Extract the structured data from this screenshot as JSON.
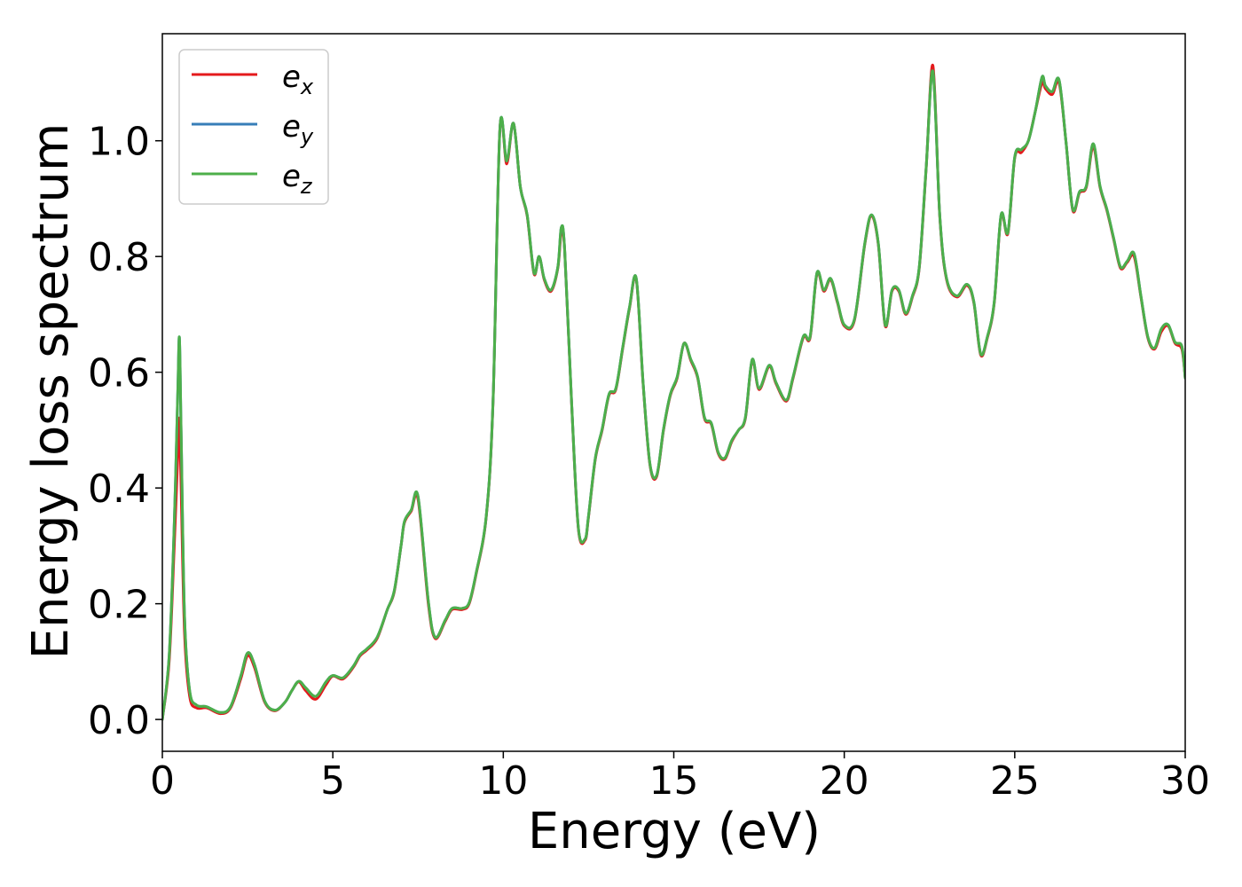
{
  "chart_data": {
    "type": "line",
    "xlabel": "Energy (eV)",
    "ylabel": "Energy loss spectrum",
    "xlim": [
      0,
      30
    ],
    "ylim": [
      -0.055,
      1.185
    ],
    "xticks": [
      0,
      5,
      10,
      15,
      20,
      25,
      30
    ],
    "xtick_labels": [
      "0",
      "5",
      "10",
      "15",
      "20",
      "25",
      "30"
    ],
    "yticks": [
      0.0,
      0.2,
      0.4,
      0.6,
      0.8,
      1.0
    ],
    "ytick_labels": [
      "0.0",
      "0.2",
      "0.4",
      "0.6",
      "0.8",
      "1.0"
    ],
    "grid": false,
    "legend_placement": "top-left",
    "x": [
      0,
      0.2,
      0.35,
      0.45,
      0.5,
      0.55,
      0.65,
      0.8,
      1.0,
      1.3,
      1.7,
      2.0,
      2.3,
      2.5,
      2.7,
      3.0,
      3.3,
      3.6,
      3.8,
      4.0,
      4.2,
      4.5,
      4.8,
      5.0,
      5.3,
      5.6,
      5.8,
      6.0,
      6.3,
      6.6,
      6.8,
      7.0,
      7.1,
      7.3,
      7.5,
      7.8,
      8.0,
      8.3,
      8.5,
      8.8,
      9.0,
      9.2,
      9.5,
      9.7,
      9.9,
      10.1,
      10.3,
      10.5,
      10.7,
      10.9,
      11.05,
      11.2,
      11.4,
      11.6,
      11.7,
      11.8,
      12.0,
      12.2,
      12.4,
      12.5,
      12.7,
      12.9,
      13.1,
      13.3,
      13.5,
      13.7,
      13.9,
      14.1,
      14.3,
      14.5,
      14.7,
      14.9,
      15.1,
      15.3,
      15.5,
      15.7,
      15.9,
      16.1,
      16.3,
      16.5,
      16.7,
      16.9,
      17.1,
      17.3,
      17.5,
      17.8,
      18.0,
      18.3,
      18.5,
      18.8,
      19.0,
      19.2,
      19.4,
      19.6,
      19.8,
      20.0,
      20.3,
      20.6,
      20.8,
      21.0,
      21.2,
      21.4,
      21.6,
      21.8,
      22.0,
      22.2,
      22.4,
      22.6,
      22.8,
      23.0,
      23.3,
      23.6,
      23.8,
      24.0,
      24.2,
      24.4,
      24.6,
      24.8,
      25.0,
      25.2,
      25.4,
      25.6,
      25.8,
      25.9,
      26.1,
      26.3,
      26.5,
      26.7,
      26.9,
      27.1,
      27.3,
      27.5,
      27.7,
      27.9,
      28.1,
      28.3,
      28.5,
      28.7,
      28.9,
      29.1,
      29.3,
      29.5,
      29.7,
      29.9,
      30.0
    ],
    "series": [
      {
        "name": "e_x",
        "label_base": "e",
        "label_sub": "x",
        "color": "#e41a1c",
        "values": [
          0.0,
          0.1,
          0.3,
          0.45,
          0.52,
          0.4,
          0.15,
          0.04,
          0.02,
          0.02,
          0.01,
          0.02,
          0.07,
          0.11,
          0.09,
          0.03,
          0.015,
          0.03,
          0.05,
          0.065,
          0.05,
          0.035,
          0.06,
          0.075,
          0.07,
          0.09,
          0.11,
          0.12,
          0.14,
          0.19,
          0.22,
          0.3,
          0.34,
          0.36,
          0.38,
          0.2,
          0.14,
          0.17,
          0.19,
          0.19,
          0.2,
          0.25,
          0.35,
          0.55,
          1.02,
          0.96,
          1.03,
          0.92,
          0.87,
          0.77,
          0.8,
          0.76,
          0.74,
          0.78,
          0.84,
          0.81,
          0.55,
          0.33,
          0.31,
          0.35,
          0.45,
          0.5,
          0.56,
          0.57,
          0.64,
          0.71,
          0.76,
          0.58,
          0.44,
          0.42,
          0.5,
          0.56,
          0.59,
          0.65,
          0.62,
          0.59,
          0.52,
          0.51,
          0.46,
          0.45,
          0.48,
          0.5,
          0.52,
          0.62,
          0.57,
          0.61,
          0.58,
          0.55,
          0.59,
          0.66,
          0.66,
          0.77,
          0.74,
          0.76,
          0.72,
          0.68,
          0.69,
          0.82,
          0.87,
          0.82,
          0.68,
          0.74,
          0.74,
          0.7,
          0.73,
          0.78,
          0.95,
          1.13,
          0.87,
          0.76,
          0.73,
          0.75,
          0.72,
          0.63,
          0.66,
          0.72,
          0.87,
          0.84,
          0.97,
          0.98,
          1.0,
          1.05,
          1.1,
          1.09,
          1.08,
          1.1,
          1.0,
          0.88,
          0.91,
          0.92,
          0.99,
          0.92,
          0.88,
          0.83,
          0.78,
          0.79,
          0.8,
          0.73,
          0.66,
          0.64,
          0.67,
          0.68,
          0.65,
          0.64,
          0.59
        ]
      },
      {
        "name": "e_y",
        "label_base": "e",
        "label_sub": "y",
        "color": "#377eb8",
        "values": [
          0.0,
          0.11,
          0.34,
          0.56,
          0.66,
          0.5,
          0.18,
          0.05,
          0.025,
          0.022,
          0.012,
          0.022,
          0.075,
          0.115,
          0.095,
          0.032,
          0.016,
          0.03,
          0.05,
          0.066,
          0.055,
          0.04,
          0.065,
          0.076,
          0.072,
          0.092,
          0.112,
          0.122,
          0.142,
          0.19,
          0.222,
          0.3,
          0.342,
          0.362,
          0.385,
          0.205,
          0.142,
          0.172,
          0.192,
          0.192,
          0.202,
          0.252,
          0.352,
          0.552,
          1.02,
          0.965,
          1.03,
          0.92,
          0.872,
          0.772,
          0.8,
          0.762,
          0.742,
          0.782,
          0.85,
          0.812,
          0.552,
          0.332,
          0.312,
          0.352,
          0.452,
          0.502,
          0.562,
          0.572,
          0.642,
          0.712,
          0.762,
          0.582,
          0.442,
          0.422,
          0.502,
          0.562,
          0.592,
          0.65,
          0.622,
          0.592,
          0.522,
          0.512,
          0.462,
          0.452,
          0.482,
          0.5,
          0.522,
          0.622,
          0.572,
          0.612,
          0.582,
          0.552,
          0.592,
          0.662,
          0.662,
          0.772,
          0.742,
          0.762,
          0.722,
          0.682,
          0.692,
          0.822,
          0.872,
          0.822,
          0.682,
          0.742,
          0.742,
          0.702,
          0.732,
          0.782,
          0.952,
          1.12,
          0.872,
          0.762,
          0.732,
          0.752,
          0.722,
          0.632,
          0.662,
          0.722,
          0.872,
          0.842,
          0.972,
          0.985,
          1.0,
          1.05,
          1.11,
          1.095,
          1.085,
          1.105,
          1.0,
          0.882,
          0.912,
          0.922,
          0.995,
          0.922,
          0.882,
          0.832,
          0.782,
          0.792,
          0.805,
          0.732,
          0.662,
          0.642,
          0.675,
          0.682,
          0.652,
          0.645,
          0.59
        ]
      },
      {
        "name": "e_z",
        "label_base": "e",
        "label_sub": "z",
        "color": "#4daf4a",
        "values": [
          0.0,
          0.11,
          0.34,
          0.56,
          0.66,
          0.5,
          0.18,
          0.05,
          0.025,
          0.022,
          0.012,
          0.022,
          0.075,
          0.115,
          0.095,
          0.032,
          0.016,
          0.03,
          0.05,
          0.066,
          0.055,
          0.04,
          0.065,
          0.076,
          0.072,
          0.092,
          0.112,
          0.122,
          0.142,
          0.19,
          0.222,
          0.3,
          0.342,
          0.362,
          0.385,
          0.205,
          0.142,
          0.172,
          0.192,
          0.192,
          0.202,
          0.252,
          0.352,
          0.552,
          1.02,
          0.965,
          1.03,
          0.92,
          0.872,
          0.772,
          0.8,
          0.762,
          0.742,
          0.782,
          0.85,
          0.812,
          0.552,
          0.332,
          0.312,
          0.352,
          0.452,
          0.502,
          0.562,
          0.572,
          0.642,
          0.712,
          0.762,
          0.582,
          0.442,
          0.422,
          0.502,
          0.562,
          0.592,
          0.65,
          0.622,
          0.592,
          0.522,
          0.512,
          0.462,
          0.452,
          0.482,
          0.5,
          0.522,
          0.622,
          0.572,
          0.612,
          0.582,
          0.552,
          0.592,
          0.662,
          0.662,
          0.772,
          0.742,
          0.762,
          0.722,
          0.682,
          0.692,
          0.822,
          0.872,
          0.822,
          0.682,
          0.742,
          0.742,
          0.702,
          0.732,
          0.782,
          0.952,
          1.12,
          0.872,
          0.762,
          0.732,
          0.752,
          0.722,
          0.632,
          0.662,
          0.722,
          0.872,
          0.842,
          0.972,
          0.985,
          1.0,
          1.05,
          1.11,
          1.095,
          1.085,
          1.105,
          1.0,
          0.882,
          0.912,
          0.922,
          0.995,
          0.922,
          0.882,
          0.832,
          0.782,
          0.792,
          0.805,
          0.732,
          0.662,
          0.642,
          0.675,
          0.682,
          0.652,
          0.645,
          0.59
        ]
      }
    ]
  }
}
